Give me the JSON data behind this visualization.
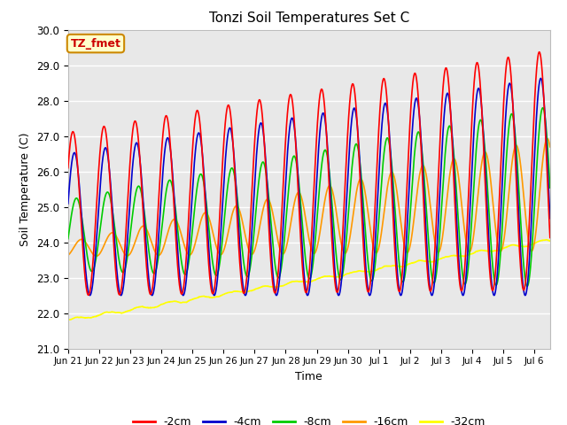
{
  "title": "Tonzi Soil Temperatures Set C",
  "xlabel": "Time",
  "ylabel": "Soil Temperature (C)",
  "ylim": [
    21.0,
    30.0
  ],
  "yticks": [
    21.0,
    22.0,
    23.0,
    24.0,
    25.0,
    26.0,
    27.0,
    28.0,
    29.0,
    30.0
  ],
  "xtick_labels": [
    "Jun 21",
    "Jun 22",
    "Jun 23",
    "Jun 24",
    "Jun 25",
    "Jun 26",
    "Jun 27",
    "Jun 28",
    "Jun 29",
    "Jun 30",
    "Jul 1",
    "Jul 2",
    "Jul 3",
    "Jul 4",
    "Jul 5",
    "Jul 6"
  ],
  "legend_labels": [
    "-2cm",
    "-4cm",
    "-8cm",
    "-16cm",
    "-32cm"
  ],
  "line_colors": [
    "#ff0000",
    "#0000cc",
    "#00cc00",
    "#ff9900",
    "#ffff00"
  ],
  "annotation_text": "TZ_fmet",
  "annotation_bg": "#ffffcc",
  "annotation_border": "#cc8800",
  "annotation_color": "#cc0000",
  "fig_bg": "#ffffff",
  "plot_bg": "#e8e8e8",
  "grid_color": "#ffffff",
  "n_points": 4000,
  "duration_days": 15.5
}
